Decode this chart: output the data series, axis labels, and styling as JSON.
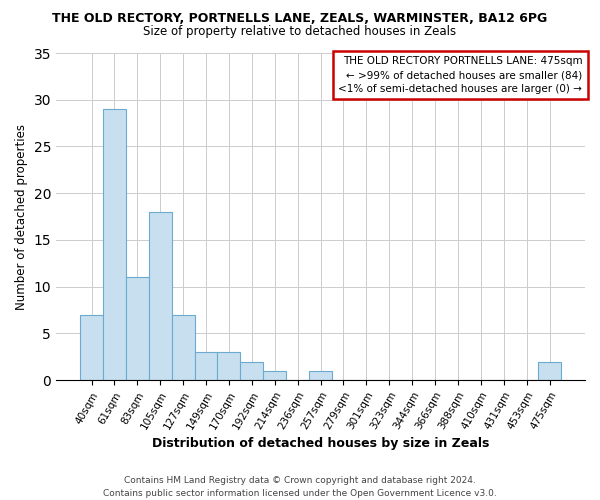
{
  "title": "THE OLD RECTORY, PORTNELLS LANE, ZEALS, WARMINSTER, BA12 6PG",
  "subtitle": "Size of property relative to detached houses in Zeals",
  "xlabel": "Distribution of detached houses by size in Zeals",
  "ylabel": "Number of detached properties",
  "bar_color": "#c8dff0",
  "bar_edgecolor": "#6aabcf",
  "categories": [
    "40sqm",
    "61sqm",
    "83sqm",
    "105sqm",
    "127sqm",
    "149sqm",
    "170sqm",
    "192sqm",
    "214sqm",
    "236sqm",
    "257sqm",
    "279sqm",
    "301sqm",
    "323sqm",
    "344sqm",
    "366sqm",
    "388sqm",
    "410sqm",
    "431sqm",
    "453sqm",
    "475sqm"
  ],
  "values": [
    7,
    29,
    11,
    18,
    7,
    3,
    3,
    2,
    1,
    0,
    1,
    0,
    0,
    0,
    0,
    0,
    0,
    0,
    0,
    0,
    2
  ],
  "ylim": [
    0,
    35
  ],
  "yticks": [
    0,
    5,
    10,
    15,
    20,
    25,
    30,
    35
  ],
  "legend_title": "THE OLD RECTORY PORTNELLS LANE: 475sqm",
  "legend_line1": "← >99% of detached houses are smaller (84)",
  "legend_line2": "<1% of semi-detached houses are larger (0) →",
  "legend_box_facecolor": "#ffffff",
  "legend_box_edgecolor": "#cc0000",
  "footer_line1": "Contains HM Land Registry data © Crown copyright and database right 2024.",
  "footer_line2": "Contains public sector information licensed under the Open Government Licence v3.0.",
  "plot_bg_color": "#ffffff",
  "fig_bg_color": "#ffffff",
  "grid_color": "#cccccc"
}
